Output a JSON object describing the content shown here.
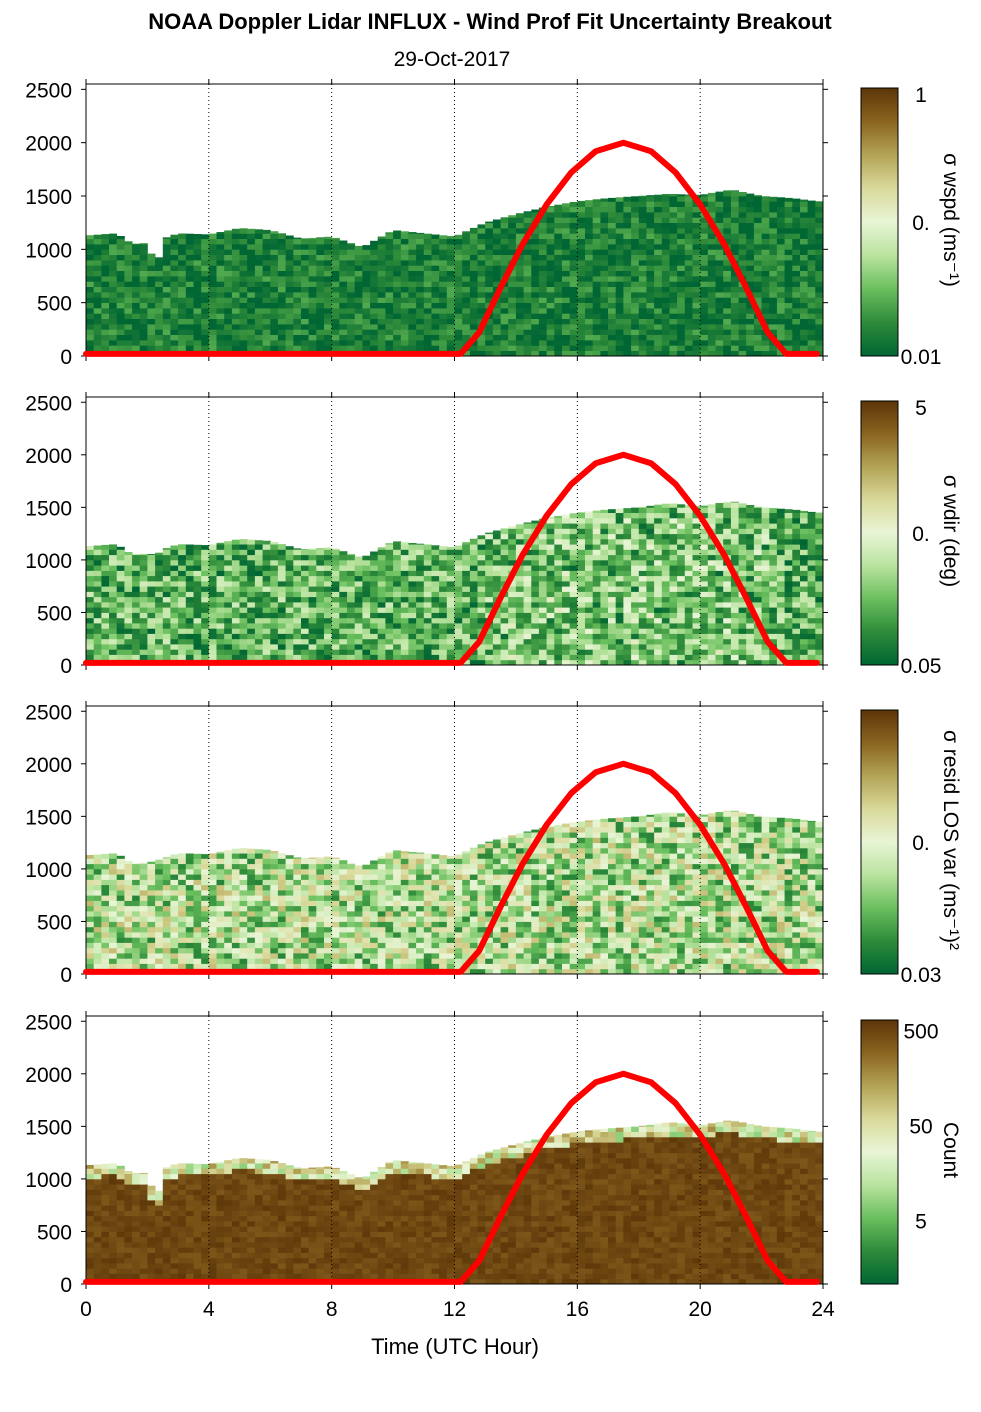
{
  "figure": {
    "title": "NOAA Doppler Lidar INFLUX - Wind Prof Fit Uncertainty Breakout",
    "subtitle": "29-Oct-2017",
    "xlabel": "Time (UTC Hour)",
    "line_color": "#ff0000",
    "colormap": [
      "#006633",
      "#2e8b3a",
      "#6abf5e",
      "#b9e39e",
      "#e8f5d6",
      "#d9d99a",
      "#b3a456",
      "#8a6420",
      "#5c3508"
    ]
  },
  "chart_data": [
    {
      "type": "heatmap",
      "name": "sigma-wspd",
      "ylim": [
        0,
        2550
      ],
      "xlim": [
        0,
        24
      ],
      "x_ticks": [
        "0",
        "4",
        "8",
        "12",
        "16",
        "20",
        "24"
      ],
      "x_tick_values": [
        0,
        4,
        8,
        12,
        16,
        20,
        24
      ],
      "y_ticks": [
        "0",
        "500",
        "1000",
        "1500",
        "2000",
        "2500"
      ],
      "y_tick_values": [
        0,
        500,
        1000,
        1500,
        2000,
        2500
      ],
      "grid": "vertical dotted",
      "colorbar": {
        "label": "σ wspd (ms⁻¹)",
        "ticks": [
          "1",
          "0.",
          "0.01"
        ],
        "tick_fracs": [
          1.0,
          0.5,
          0.0
        ]
      },
      "heatmap_profile": {
        "base": 0.08,
        "spread": 0.12,
        "hotspots": []
      },
      "top_height_profile": {
        "x": [
          0,
          1,
          1.5,
          2,
          2.3,
          2.5,
          3,
          4,
          5,
          6,
          7,
          8,
          9,
          10,
          11,
          12,
          13,
          14,
          15,
          16,
          17,
          18,
          19,
          20,
          21,
          22,
          23,
          23.8
        ],
        "y": [
          1130,
          1150,
          1050,
          1060,
          820,
          1100,
          1150,
          1140,
          1200,
          1180,
          1100,
          1120,
          1020,
          1180,
          1150,
          1120,
          1250,
          1330,
          1400,
          1450,
          1480,
          1500,
          1520,
          1510,
          1560,
          1500,
          1480,
          1450
        ]
      },
      "series": [
        {
          "x": [
            0,
            12.2,
            12.8,
            13.5,
            14.2,
            15,
            15.8,
            16.6,
            17.5,
            18.4,
            19.2,
            20,
            20.8,
            21.5,
            22.2,
            22.8,
            23.8
          ],
          "y": [
            20,
            20,
            220,
            640,
            1040,
            1420,
            1720,
            1920,
            2000,
            1920,
            1720,
            1420,
            1040,
            640,
            220,
            20,
            20
          ]
        }
      ]
    },
    {
      "type": "heatmap",
      "name": "sigma-wdir",
      "ylim": [
        0,
        2550
      ],
      "xlim": [
        0,
        24
      ],
      "x_ticks": [
        "0",
        "4",
        "8",
        "12",
        "16",
        "20",
        "24"
      ],
      "x_tick_values": [
        0,
        4,
        8,
        12,
        16,
        20,
        24
      ],
      "y_ticks": [
        "0",
        "500",
        "1000",
        "1500",
        "2000",
        "2500"
      ],
      "y_tick_values": [
        0,
        500,
        1000,
        1500,
        2000,
        2500
      ],
      "grid": "vertical dotted",
      "colorbar": {
        "label": "σ wdir (deg)",
        "ticks": [
          "5",
          "0.",
          "0.05"
        ],
        "tick_fracs": [
          1.0,
          0.5,
          0.0
        ]
      },
      "heatmap_profile": {
        "base": 0.22,
        "spread": 0.22,
        "hotspots": [
          {
            "x": [
              13,
              22
            ],
            "boost": 0.12
          }
        ]
      },
      "top_height_profile": {
        "x": [
          0,
          1,
          1.5,
          2,
          2.3,
          2.5,
          3,
          4,
          5,
          6,
          7,
          8,
          9,
          10,
          11,
          12,
          13,
          14,
          15,
          16,
          17,
          18,
          19,
          20,
          21,
          22,
          23,
          23.8
        ],
        "y": [
          1130,
          1150,
          1050,
          1060,
          1050,
          1100,
          1150,
          1140,
          1200,
          1180,
          1100,
          1120,
          1020,
          1180,
          1150,
          1120,
          1250,
          1330,
          1400,
          1450,
          1480,
          1500,
          1540,
          1510,
          1560,
          1500,
          1480,
          1450
        ]
      },
      "series": [
        {
          "x": [
            0,
            12.2,
            12.8,
            13.5,
            14.2,
            15,
            15.8,
            16.6,
            17.5,
            18.4,
            19.2,
            20,
            20.8,
            21.5,
            22.2,
            22.8,
            23.8
          ],
          "y": [
            20,
            20,
            220,
            640,
            1040,
            1420,
            1720,
            1920,
            2000,
            1920,
            1720,
            1420,
            1040,
            640,
            220,
            20,
            20
          ]
        }
      ]
    },
    {
      "type": "heatmap",
      "name": "sigma-resid-los",
      "ylim": [
        0,
        2550
      ],
      "xlim": [
        0,
        24
      ],
      "x_ticks": [
        "0",
        "4",
        "8",
        "12",
        "16",
        "20",
        "24"
      ],
      "x_tick_values": [
        0,
        4,
        8,
        12,
        16,
        20,
        24
      ],
      "y_ticks": [
        "0",
        "500",
        "1000",
        "1500",
        "2000",
        "2500"
      ],
      "y_tick_values": [
        0,
        500,
        1000,
        1500,
        2000,
        2500
      ],
      "grid": "vertical dotted",
      "colorbar": {
        "label": "σ resid LOS var (ms⁻¹)²",
        "ticks": [
          "0.",
          "0.03"
        ],
        "tick_fracs": [
          0.5,
          0.0
        ]
      },
      "heatmap_profile": {
        "base": 0.4,
        "spread": 0.3,
        "hotspots": []
      },
      "top_height_profile": {
        "x": [
          0,
          1,
          1.5,
          2,
          2.3,
          2.5,
          3,
          4,
          5,
          6,
          7,
          8,
          9,
          10,
          11,
          12,
          13,
          14,
          15,
          16,
          17,
          18,
          19,
          20,
          21,
          22,
          23,
          23.8
        ],
        "y": [
          1130,
          1150,
          1050,
          1060,
          1080,
          1100,
          1150,
          1140,
          1200,
          1180,
          1100,
          1120,
          1020,
          1180,
          1150,
          1120,
          1250,
          1330,
          1400,
          1450,
          1480,
          1500,
          1540,
          1510,
          1560,
          1500,
          1480,
          1450
        ]
      },
      "series": [
        {
          "x": [
            0,
            12.2,
            12.8,
            13.5,
            14.2,
            15,
            15.8,
            16.6,
            17.5,
            18.4,
            19.2,
            20,
            20.8,
            21.5,
            22.2,
            22.8,
            23.8
          ],
          "y": [
            20,
            20,
            220,
            640,
            1040,
            1420,
            1720,
            1920,
            2000,
            1920,
            1720,
            1420,
            1040,
            640,
            220,
            20,
            20
          ]
        }
      ]
    },
    {
      "type": "heatmap",
      "name": "count",
      "ylim": [
        0,
        2550
      ],
      "xlim": [
        0,
        24
      ],
      "x_ticks": [
        "0",
        "4",
        "8",
        "12",
        "16",
        "20",
        "24"
      ],
      "x_tick_values": [
        0,
        4,
        8,
        12,
        16,
        20,
        24
      ],
      "y_ticks": [
        "0",
        "500",
        "1000",
        "1500",
        "2000",
        "2500"
      ],
      "y_tick_values": [
        0,
        500,
        1000,
        1500,
        2000,
        2500
      ],
      "grid": "vertical dotted",
      "colorbar": {
        "label": "Count",
        "ticks": [
          "500",
          "50",
          "5"
        ],
        "tick_fracs": [
          0.96,
          0.6,
          0.24
        ]
      },
      "heatmap_profile": {
        "base": 0.95,
        "spread": 0.04,
        "hotspots": []
      },
      "top_height_profile": {
        "x": [
          0,
          1,
          1.5,
          2,
          2.3,
          2.5,
          3,
          4,
          5,
          6,
          7,
          8,
          9,
          10,
          11,
          12,
          13,
          14,
          15,
          16,
          17,
          18,
          19,
          20,
          21,
          22,
          23,
          23.8
        ],
        "y": [
          1130,
          1150,
          1050,
          1060,
          760,
          1100,
          1150,
          1140,
          1200,
          1180,
          1100,
          1120,
          1000,
          1180,
          1150,
          1120,
          1250,
          1330,
          1400,
          1450,
          1480,
          1500,
          1540,
          1510,
          1560,
          1500,
          1480,
          1450
        ]
      },
      "series": [
        {
          "x": [
            0,
            12.2,
            12.8,
            13.5,
            14.2,
            15,
            15.8,
            16.6,
            17.5,
            18.4,
            19.2,
            20,
            20.8,
            21.5,
            22.2,
            22.8,
            23.8
          ],
          "y": [
            20,
            20,
            220,
            640,
            1040,
            1420,
            1720,
            1920,
            2000,
            1920,
            1720,
            1420,
            1040,
            640,
            220,
            20,
            20
          ]
        }
      ]
    }
  ]
}
